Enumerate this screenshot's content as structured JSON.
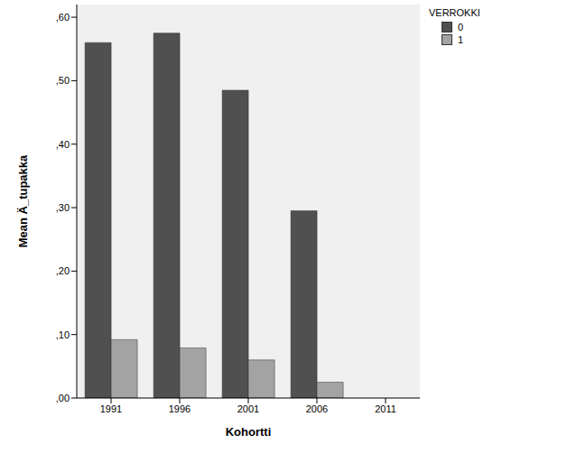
{
  "chart_data": {
    "type": "bar",
    "x_label": "Kohortti",
    "y_label": "Mean Ä_tupakka",
    "legend_title": "VERROKKI",
    "legend": "right",
    "grid": false,
    "categories": [
      "1991",
      "1996",
      "2001",
      "2006",
      "2011"
    ],
    "series": [
      {
        "name": "0",
        "color": "#505050",
        "values": [
          0.56,
          0.575,
          0.485,
          0.295,
          null
        ]
      },
      {
        "name": "1",
        "color": "#a3a3a3",
        "values": [
          0.092,
          0.079,
          0.06,
          0.025,
          null
        ]
      }
    ],
    "ylim": [
      0,
      0.62
    ],
    "yticks": [
      {
        "value": 0,
        "label": ",00"
      },
      {
        "value": 0.1,
        "label": ",10"
      },
      {
        "value": 0.2,
        "label": ",20"
      },
      {
        "value": 0.3,
        "label": ",30"
      },
      {
        "value": 0.4,
        "label": ",40"
      },
      {
        "value": 0.5,
        "label": ",50"
      },
      {
        "value": 0.6,
        "label": ",60"
      }
    ]
  }
}
